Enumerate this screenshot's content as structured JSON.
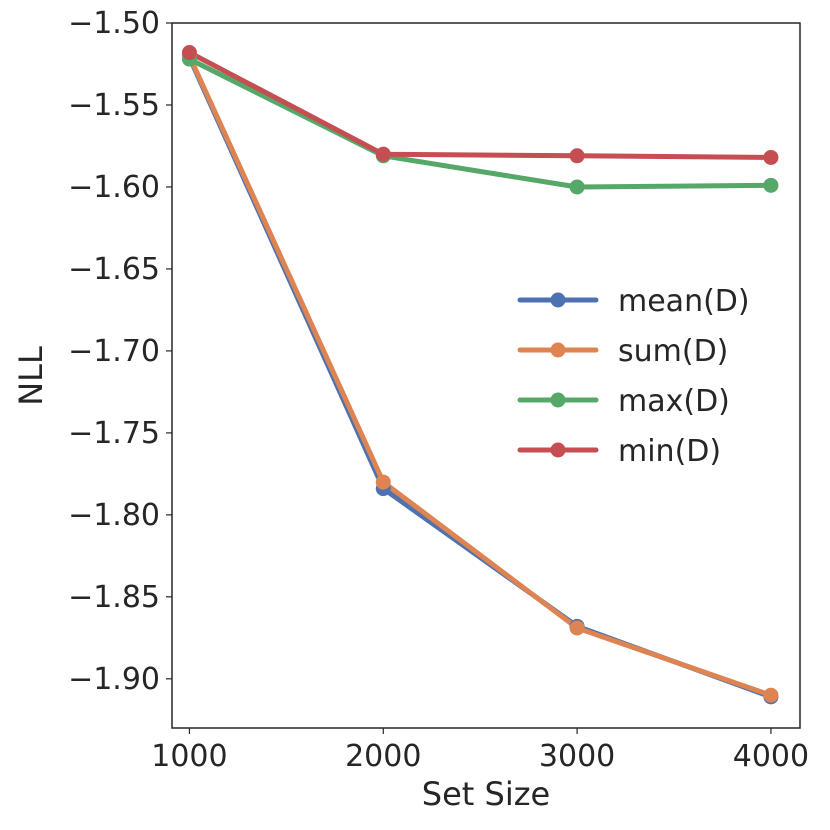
{
  "chart_data": {
    "type": "line",
    "title": "",
    "xlabel": "Set Size",
    "ylabel": "NLL",
    "x": [
      1000,
      2000,
      3000,
      4000
    ],
    "x_ticks": [
      "1000",
      "2000",
      "3000",
      "4000"
    ],
    "xlim": [
      910,
      4150
    ],
    "ylim": [
      -1.93,
      -1.5
    ],
    "y_ticks": [
      -1.5,
      -1.55,
      -1.6,
      -1.65,
      -1.7,
      -1.75,
      -1.8,
      -1.85,
      -1.9
    ],
    "y_tick_labels": [
      "−1.50",
      "−1.55",
      "−1.60",
      "−1.65",
      "−1.70",
      "−1.75",
      "−1.80",
      "−1.85",
      "−1.90"
    ],
    "grid": false,
    "legend_position": "center-right",
    "series": [
      {
        "name": "mean(D)",
        "color": "#4c72b0",
        "values": [
          -1.521,
          -1.784,
          -1.868,
          -1.911
        ]
      },
      {
        "name": "sum(D)",
        "color": "#dd8452",
        "values": [
          -1.52,
          -1.78,
          -1.869,
          -1.91
        ]
      },
      {
        "name": "max(D)",
        "color": "#55a868",
        "values": [
          -1.522,
          -1.581,
          -1.6,
          -1.599
        ]
      },
      {
        "name": "min(D)",
        "color": "#c44e52",
        "values": [
          -1.518,
          -1.58,
          -1.581,
          -1.582
        ]
      }
    ]
  }
}
